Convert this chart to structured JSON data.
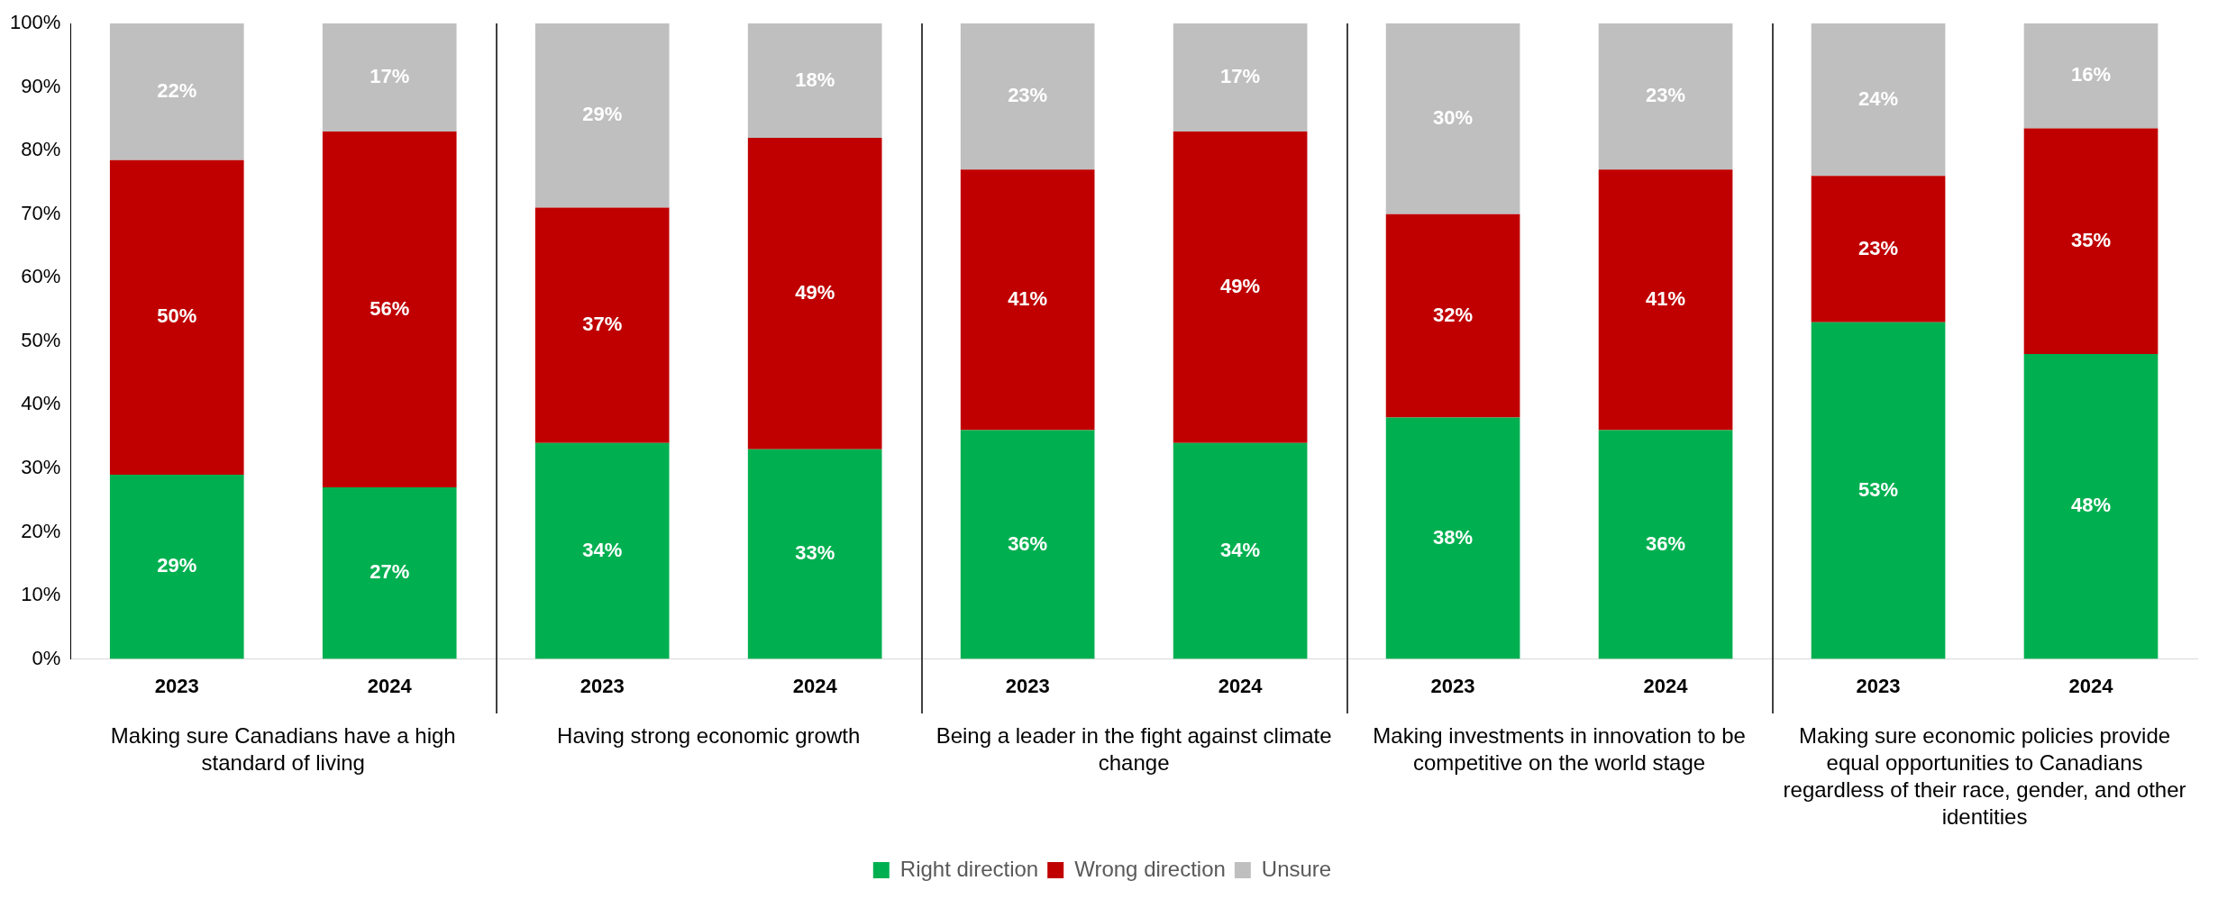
{
  "chart_data": {
    "type": "bar",
    "stacked": true,
    "categories": [
      "2023",
      "2024",
      "2023",
      "2024",
      "2023",
      "2024",
      "2023",
      "2024",
      "2023",
      "2024"
    ],
    "series": [
      {
        "name": "Right direction",
        "color": "#00b050",
        "values": [
          29,
          27,
          34,
          33,
          36,
          34,
          38,
          36,
          53,
          48
        ],
        "value_labels": [
          "29%",
          "27%",
          "34%",
          "33%",
          "36%",
          "34%",
          "38%",
          "36%",
          "53%",
          "48%"
        ]
      },
      {
        "name": "Wrong direction",
        "color": "#c00000",
        "values": [
          49.5,
          56,
          37,
          49,
          41,
          49,
          32,
          41,
          23,
          35.5
        ],
        "value_labels": [
          "50%",
          "56%",
          "37%",
          "49%",
          "41%",
          "49%",
          "32%",
          "41%",
          "23%",
          "35%"
        ]
      },
      {
        "name": "Unsure",
        "color": "#bfbfbf",
        "values": [
          21.5,
          17,
          29,
          18,
          23,
          17,
          30,
          23,
          24,
          16.5
        ],
        "value_labels": [
          "22%",
          "17%",
          "29%",
          "18%",
          "23%",
          "17%",
          "30%",
          "23%",
          "24%",
          "16%"
        ]
      }
    ],
    "ylim": [
      0,
      100
    ],
    "yticks": [
      {
        "value": 0,
        "label": "0%"
      },
      {
        "value": 10,
        "label": "10%"
      },
      {
        "value": 20,
        "label": "20%"
      },
      {
        "value": 30,
        "label": "30%"
      },
      {
        "value": 40,
        "label": "40%"
      },
      {
        "value": 50,
        "label": "50%"
      },
      {
        "value": 60,
        "label": "60%"
      },
      {
        "value": 70,
        "label": "70%"
      },
      {
        "value": 80,
        "label": "80%"
      },
      {
        "value": 90,
        "label": "90%"
      },
      {
        "value": 100,
        "label": "100%"
      }
    ],
    "grid": false,
    "legend": "bottom",
    "annotations": [
      "Making sure Canadians have a high standard of living",
      "Having strong economic growth",
      "Being a leader in the fight against climate change",
      "Making investments in innovation to be competitive on the world stage",
      "Making sure economic policies provide equal opportunities to Canadians regardless of their race, gender, and other identities"
    ]
  }
}
